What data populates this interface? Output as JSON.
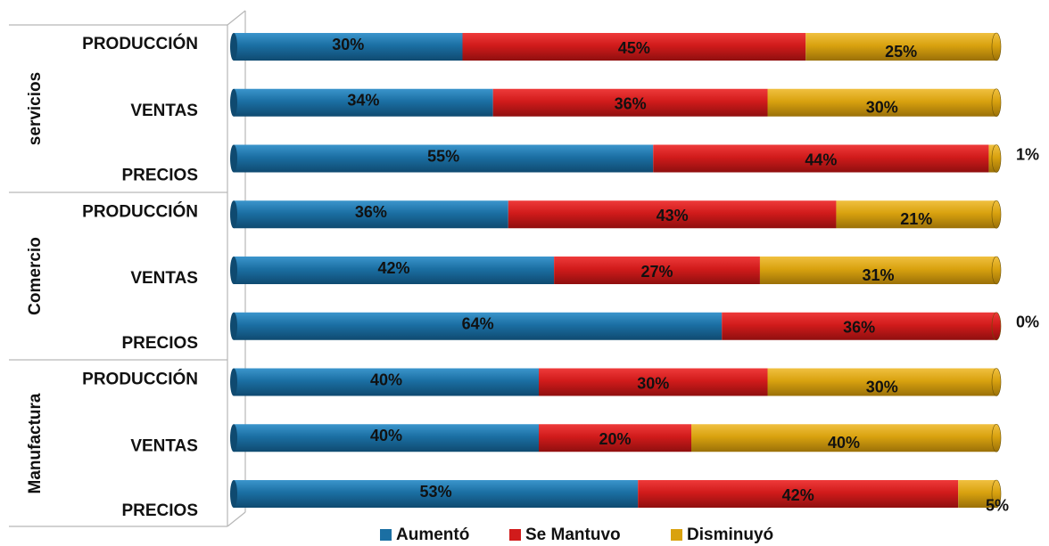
{
  "colors": {
    "aumento": "#1b6fa3",
    "se_mantuvo": "#d11b1b",
    "disminuyo": "#d9a20f"
  },
  "chart_data": {
    "type": "bar",
    "orientation": "horizontal",
    "stacked": true,
    "percent": true,
    "title": "",
    "xlabel": "",
    "ylabel": "",
    "xlim": [
      0,
      100
    ],
    "grid": false,
    "legend_position": "bottom",
    "groups": [
      {
        "name": "servicios",
        "categories": [
          "PRODUCCIÓN",
          "VENTAS",
          "PRECIOS"
        ],
        "values": {
          "Aumentó": [
            30,
            34,
            55
          ],
          "Se Mantuvo": [
            45,
            36,
            44
          ],
          "Disminuyó": [
            25,
            30,
            1
          ]
        }
      },
      {
        "name": "Comercio",
        "categories": [
          "PRODUCCIÓN",
          "VENTAS",
          "PRECIOS"
        ],
        "values": {
          "Aumentó": [
            36,
            42,
            64
          ],
          "Se Mantuvo": [
            43,
            27,
            36
          ],
          "Disminuyó": [
            21,
            31,
            0
          ]
        }
      },
      {
        "name": "Manufactura",
        "categories": [
          "PRODUCCIÓN",
          "VENTAS",
          "PRECIOS"
        ],
        "values": {
          "Aumentó": [
            40,
            40,
            53
          ],
          "Se Mantuvo": [
            30,
            20,
            42
          ],
          "Disminuyó": [
            30,
            40,
            5
          ]
        }
      }
    ],
    "series": [
      {
        "name": "Aumentó",
        "color": "#1b6fa3"
      },
      {
        "name": "Se Mantuvo",
        "color": "#d11b1b"
      },
      {
        "name": "Disminuyó",
        "color": "#d9a20f"
      }
    ]
  }
}
